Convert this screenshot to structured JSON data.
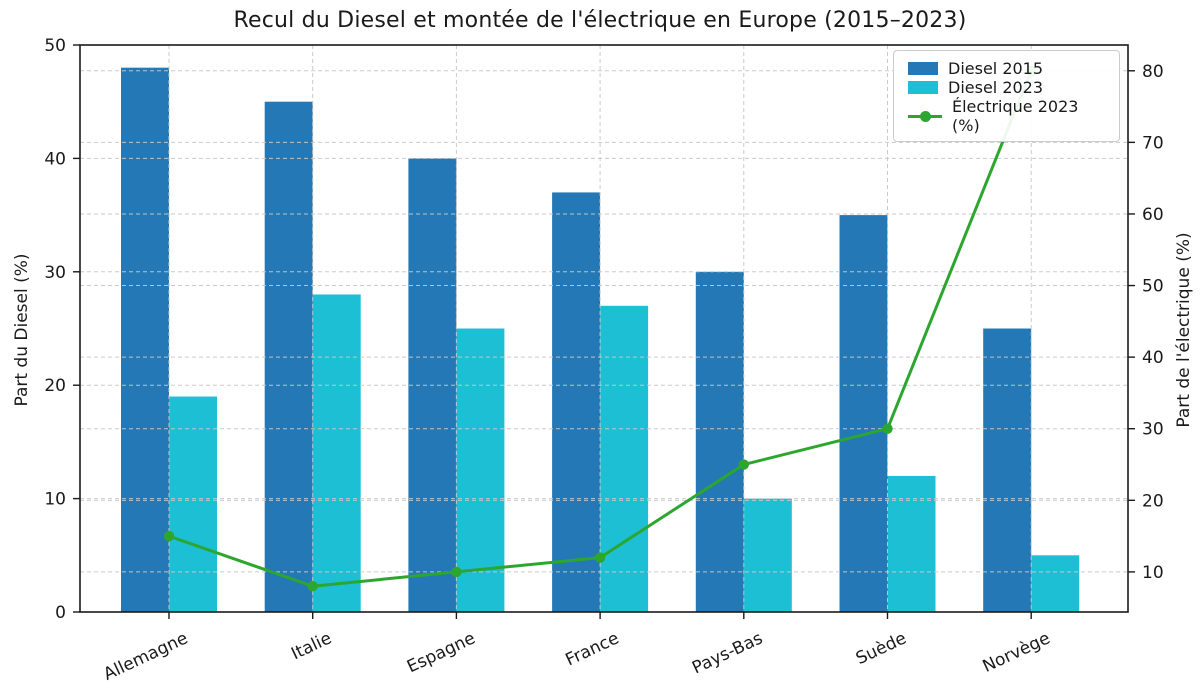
{
  "figure": {
    "title": "Recul du Diesel et montée de l'électrique en Europe (2015–2023)"
  },
  "chart_data": {
    "type": "bar",
    "subtype": "grouped bars + line overlay (dual y-axis)",
    "title": "Recul du Diesel et montée de l'électrique en Europe (2015–2023)",
    "categories": [
      "Allemagne",
      "Italie",
      "Espagne",
      "France",
      "Pays-Bas",
      "Suède",
      "Norvège"
    ],
    "series": [
      {
        "name": "Diesel 2015",
        "type": "bar",
        "axis": "left",
        "color": "#2478b5",
        "values": [
          48,
          45,
          40,
          37,
          30,
          35,
          25
        ]
      },
      {
        "name": "Diesel 2023",
        "type": "bar",
        "axis": "left",
        "color": "#1dbfd4",
        "values": [
          19,
          28,
          25,
          27,
          10,
          12,
          5
        ]
      },
      {
        "name": "Électrique 2023 (%)",
        "type": "line",
        "axis": "right",
        "color": "#2ca62e",
        "values": [
          15,
          8,
          10,
          12,
          25,
          30,
          80
        ]
      }
    ],
    "left_axis": {
      "label": "Part du Diesel (%)",
      "ticks": [
        0,
        10,
        20,
        30,
        40,
        50
      ],
      "lim": [
        0,
        50
      ]
    },
    "right_axis": {
      "label": "Part de l'électrique (%)",
      "ticks": [
        10,
        20,
        30,
        40,
        50,
        60,
        70,
        80
      ],
      "lim": [
        4.4,
        83.6
      ]
    },
    "x_tick_rotation": 25,
    "grid": {
      "visible": true,
      "style": "dashed",
      "horizontal": "both-axes-ticks",
      "vertical": "category-ticks"
    },
    "legend": {
      "position": "upper right",
      "items": [
        "Diesel 2015",
        "Diesel 2023",
        "Électrique 2023 (%)"
      ]
    }
  },
  "colors": {
    "background": "#ffffff",
    "grid": "#c8c8c8",
    "spine": "#1a1a1a",
    "text": "#1a1a1a",
    "bar_2015": "#2478b5",
    "bar_2023": "#1dbfd4",
    "line_electric": "#2ca62e"
  }
}
